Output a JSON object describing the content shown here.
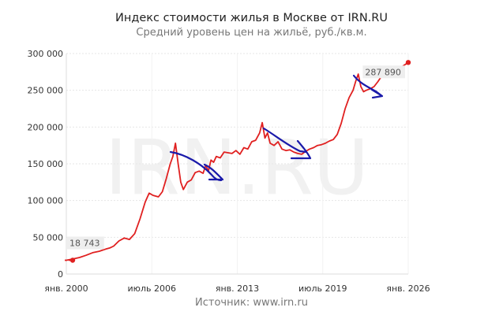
{
  "header": {
    "title": "Индекс стоимости жилья в Москве от IRN.RU",
    "subtitle": "Средний уровень цен на жильё, руб./кв.м."
  },
  "footer": {
    "source": "Источник: www.irn.ru"
  },
  "watermark": "IRN.RU",
  "colors": {
    "line": "#e02020",
    "annotation": "#1a1aaa",
    "grid": "#e6e6e6",
    "label_bg": "#eeeeee"
  },
  "chart_data": {
    "type": "line",
    "title": "Индекс стоимости жилья в Москве от IRN.RU",
    "subtitle": "Средний уровень цен на жильё, руб./кв.м.",
    "xlabel": "",
    "ylabel": "",
    "ylim": [
      0,
      300000
    ],
    "xlim": [
      2000.0,
      2026.0
    ],
    "grid": true,
    "legend": "none",
    "y_ticks": [
      {
        "value": 0,
        "label": "0"
      },
      {
        "value": 50000,
        "label": "50 000"
      },
      {
        "value": 100000,
        "label": "100 000"
      },
      {
        "value": 150000,
        "label": "150 000"
      },
      {
        "value": 200000,
        "label": "200 000"
      },
      {
        "value": 250000,
        "label": "250 000"
      },
      {
        "value": 300000,
        "label": "300 000"
      }
    ],
    "x_ticks": [
      {
        "value": 2000.0,
        "label": "янв. 2000"
      },
      {
        "value": 2006.5,
        "label": "июль 2006"
      },
      {
        "value": 2013.0,
        "label": "янв. 2013"
      },
      {
        "value": 2019.5,
        "label": "июль 2019"
      },
      {
        "value": 2026.0,
        "label": "янв. 2026"
      }
    ],
    "annotations": [
      {
        "x": 2000.0,
        "y": 18743,
        "label": "18 743"
      },
      {
        "x": 2026.0,
        "y": 287890,
        "label": "287 890"
      }
    ],
    "series": [
      {
        "name": "Средний уровень цен на жильё, руб./кв.м.",
        "x": [
          2000.0,
          2000.5,
          2001.0,
          2001.5,
          2002.0,
          2002.5,
          2003.0,
          2003.3,
          2003.6,
          2004.0,
          2004.4,
          2004.8,
          2005.2,
          2005.6,
          2006.0,
          2006.3,
          2006.6,
          2007.0,
          2007.3,
          2007.6,
          2007.9,
          2008.1,
          2008.3,
          2008.5,
          2008.7,
          2008.9,
          2009.2,
          2009.5,
          2009.8,
          2010.1,
          2010.4,
          2010.6,
          2010.8,
          2011.0,
          2011.2,
          2011.4,
          2011.7,
          2012.0,
          2012.3,
          2012.6,
          2012.9,
          2013.2,
          2013.5,
          2013.8,
          2014.1,
          2014.4,
          2014.7,
          2014.9,
          2015.1,
          2015.3,
          2015.5,
          2015.8,
          2016.1,
          2016.4,
          2016.7,
          2017.0,
          2017.3,
          2017.6,
          2017.9,
          2018.2,
          2018.5,
          2018.8,
          2019.1,
          2019.4,
          2019.7,
          2020.0,
          2020.3,
          2020.6,
          2020.9,
          2021.2,
          2021.5,
          2021.8,
          2022.0,
          2022.2,
          2022.4,
          2022.6,
          2022.8,
          2023.1,
          2023.4,
          2023.7,
          2024.0,
          2024.4,
          2024.8,
          2025.2,
          2025.6,
          2026.0
        ],
        "values": [
          18743,
          20500,
          22500,
          25500,
          29000,
          31000,
          34000,
          35500,
          38000,
          45000,
          49000,
          47000,
          55000,
          75000,
          98000,
          110000,
          107000,
          105000,
          112000,
          130000,
          150000,
          160000,
          178000,
          150000,
          125000,
          115000,
          125000,
          128000,
          138000,
          140000,
          137000,
          148000,
          140000,
          155000,
          152000,
          160000,
          158000,
          166000,
          165000,
          164000,
          168000,
          163000,
          172000,
          170000,
          180000,
          182000,
          192000,
          206000,
          185000,
          192000,
          178000,
          175000,
          180000,
          170000,
          168000,
          169000,
          166000,
          164000,
          163000,
          167000,
          170000,
          172000,
          175000,
          176000,
          178000,
          181000,
          183000,
          190000,
          205000,
          225000,
          240000,
          250000,
          262000,
          272000,
          255000,
          248000,
          250000,
          252000,
          255000,
          262000,
          270000,
          272000,
          275000,
          280000,
          283000,
          287890
        ]
      }
    ],
    "hand_drawn_annotations": [
      {
        "description": "blue downward trend arrow after 2008 peak",
        "x_range": [
          2006.8,
          2010.6
        ]
      },
      {
        "description": "blue downward trend arrow after 2014 peak",
        "x_range": [
          2014.7,
          2018.7
        ]
      },
      {
        "description": "blue downward trend arrow after 2022 peak",
        "x_range": [
          2021.7,
          2024.4
        ]
      }
    ]
  }
}
